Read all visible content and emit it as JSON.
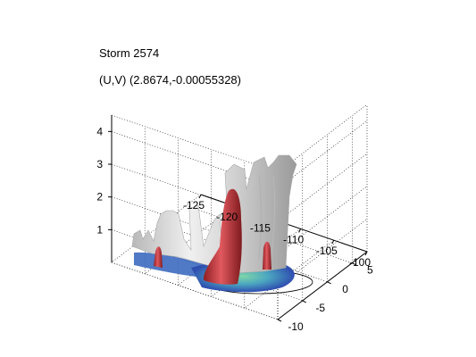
{
  "chart_data": {
    "type": "3d-surface",
    "title": "Storm 2574",
    "subtitle": "(U,V) (2.8674,-0.00055328)",
    "x_ticks": [
      -125,
      -120,
      -115,
      -110,
      -105,
      -100
    ],
    "y_ticks": [
      -10,
      -5,
      0,
      5
    ],
    "z_ticks": [
      1,
      2,
      3,
      4
    ],
    "xlim": [
      -125,
      -100
    ],
    "ylim": [
      -10,
      8
    ],
    "zlim": [
      0,
      4.5
    ],
    "grid": true,
    "colors": {
      "isosurface_gray": "#d9d9d9",
      "core_red": "#cc3f44",
      "base_green": "#63c7a2",
      "base_blue": "#3a64c2",
      "base_ring": "#000000"
    }
  }
}
